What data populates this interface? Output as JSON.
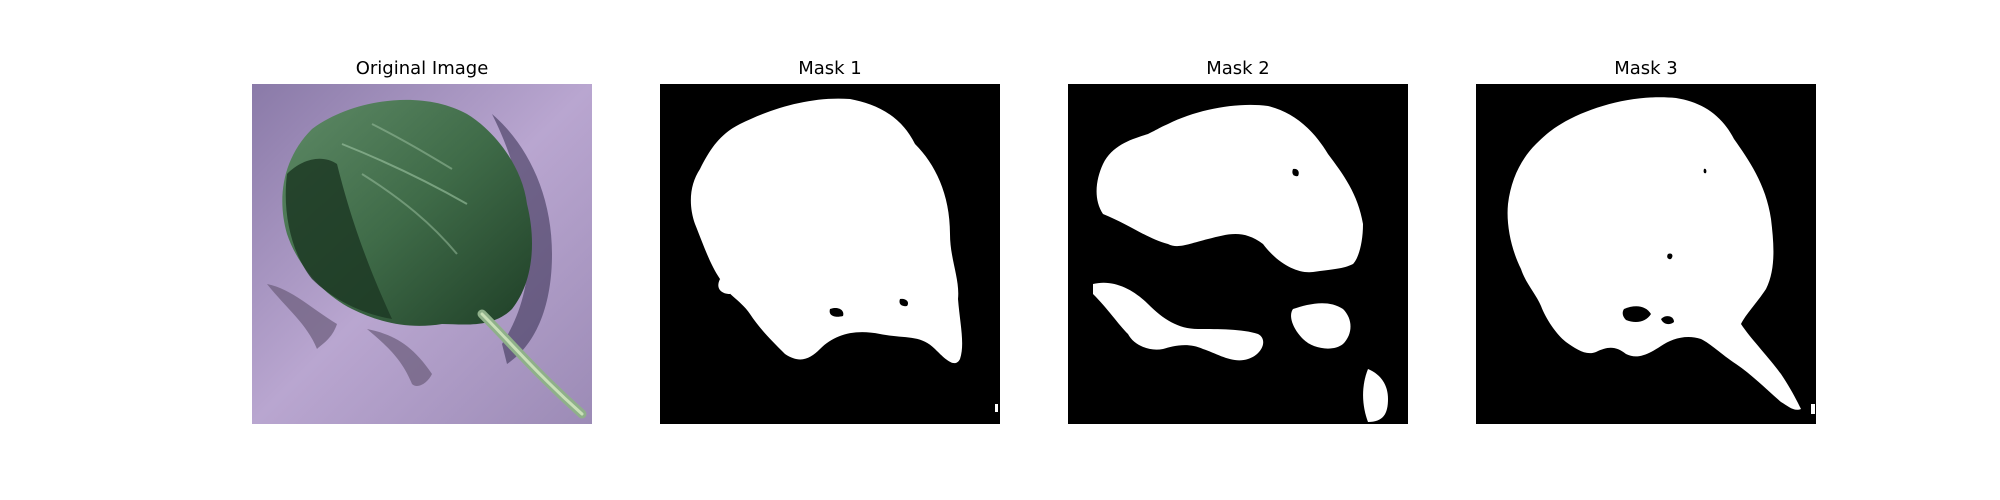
{
  "figure": {
    "panels": [
      {
        "title": "Original Image",
        "image": "leaf-photo"
      },
      {
        "title": "Mask 1",
        "image": "segmentation-mask"
      },
      {
        "title": "Mask 2",
        "image": "segmentation-mask"
      },
      {
        "title": "Mask 3",
        "image": "segmentation-mask"
      }
    ],
    "colors": {
      "background": "#ffffff",
      "mask_background": "#000000",
      "mask_foreground": "#ffffff",
      "leaf_dark": "#234a2c",
      "leaf_light": "#4f7a58",
      "surface": "#9a88b8"
    }
  }
}
